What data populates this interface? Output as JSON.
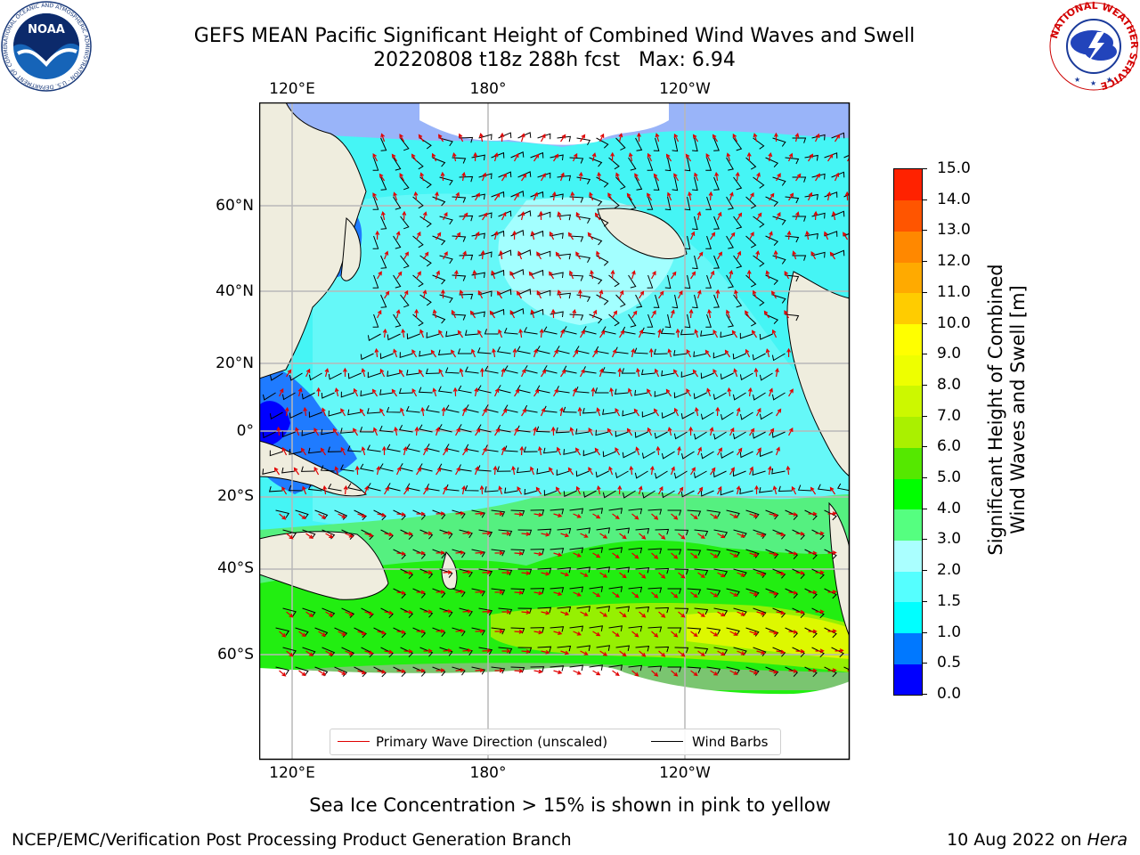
{
  "header": {
    "title": "GEFS MEAN Pacific Significant Height of Combined Wind Waves and Swell",
    "subtitle": "20220808 t18z 288h fcst   Max: 6.94"
  },
  "logos": {
    "noaa_text": "NOAA",
    "noaa_ring": "NATIONAL OCEANIC AND ATMOSPHERIC ADMINISTRATION · U.S. DEPARTMENT OF COMMERCE ·",
    "nws_ring": "NATIONAL WEATHER SERVICE"
  },
  "map": {
    "lon_labels_top": [
      "120°E",
      "180°",
      "120°W"
    ],
    "lon_labels_bottom": [
      "120°E",
      "180°",
      "120°W"
    ],
    "lat_labels": [
      "60°N",
      "40°N",
      "20°N",
      "0°",
      "20°S",
      "40°S",
      "60°S"
    ],
    "legend": {
      "wave_direction": "Primary Wave Direction (unscaled)",
      "wind_barbs": "Wind Barbs"
    },
    "colors": {
      "land": "#efedde",
      "ice": "#ffffff",
      "wave_arrow": "#e00000",
      "wind_barb": "#000000"
    }
  },
  "colorbar": {
    "label": "Significant Height of Combined\nWind Waves and Swell [m]",
    "ticks": [
      "0.0",
      "0.5",
      "1.0",
      "1.5",
      "2.0",
      "3.0",
      "4.0",
      "5.0",
      "6.0",
      "7.0",
      "8.0",
      "9.0",
      "10.0",
      "11.0",
      "12.0",
      "13.0",
      "14.0",
      "15.0"
    ],
    "colors": [
      "#0000ff",
      "#0078ff",
      "#00ffff",
      "#55ffff",
      "#aaffff",
      "#55ff80",
      "#00ff00",
      "#55e800",
      "#aaf000",
      "#ccf800",
      "#eeff00",
      "#ffff00",
      "#ffcc00",
      "#ffaa00",
      "#ff8800",
      "#ff5500",
      "#ff2200"
    ]
  },
  "notes": {
    "sea_ice": "Sea Ice Concentration > 15% is shown in pink to yellow"
  },
  "footer": {
    "left": "NCEP/EMC/Verification Post Processing Product Generation Branch",
    "date": "10 Aug 2022 on ",
    "host": "Hera"
  }
}
